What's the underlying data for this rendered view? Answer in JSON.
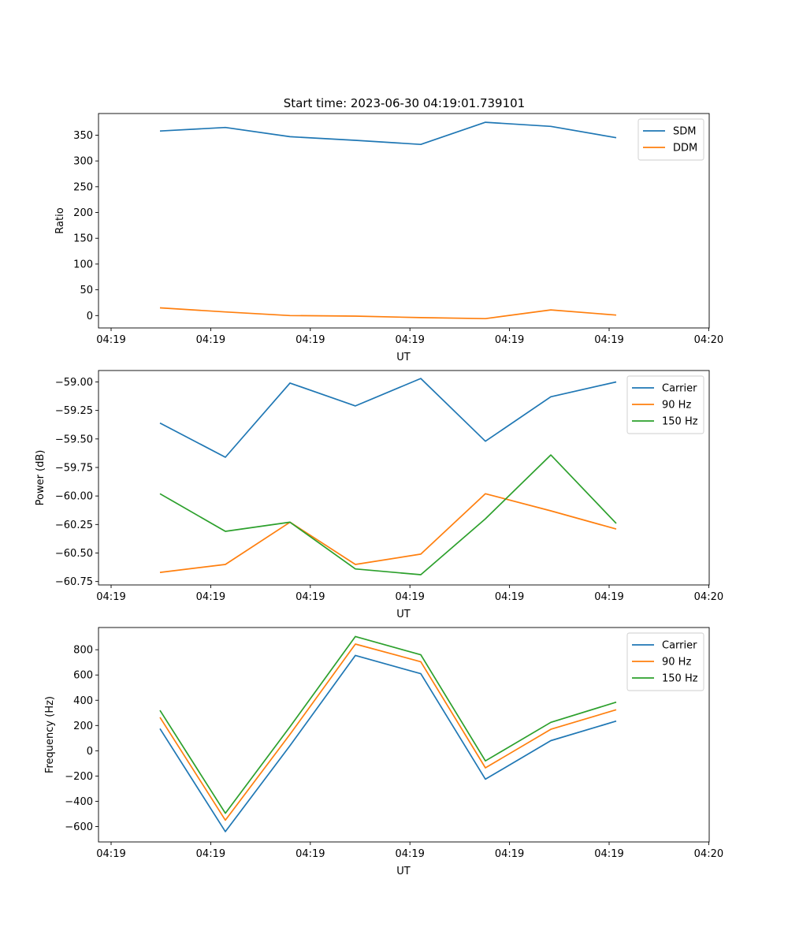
{
  "figure": {
    "title": "Start time: 2023-06-30 04:19:01.739101"
  },
  "chart_data": [
    {
      "type": "line",
      "title": "Start time: 2023-06-30 04:19:01.739101",
      "xlabel": "UT",
      "ylabel": "Ratio",
      "x_tick_labels": [
        "04:19",
        "04:19",
        "04:19",
        "04:19",
        "04:19",
        "04:19",
        "04:19",
        "04:20"
      ],
      "y_ticks": [
        0,
        50,
        100,
        150,
        200,
        250,
        300,
        350
      ],
      "y_tick_labels": [
        "0",
        "50",
        "100",
        "150",
        "200",
        "250",
        "300",
        "350"
      ],
      "ylim": [
        -24,
        392
      ],
      "grid": false,
      "legend_position": "upper right",
      "series": [
        {
          "name": "SDM",
          "color": "#1f77b4",
          "values": [
            358,
            365,
            347,
            340,
            332,
            375,
            367,
            345
          ]
        },
        {
          "name": "DDM",
          "color": "#ff7f0e",
          "values": [
            15,
            7,
            0,
            -1,
            -4,
            -6,
            11,
            1
          ]
        }
      ]
    },
    {
      "type": "line",
      "xlabel": "UT",
      "ylabel": "Power (dB)",
      "x_tick_labels": [
        "04:19",
        "04:19",
        "04:19",
        "04:19",
        "04:19",
        "04:19",
        "04:19",
        "04:20"
      ],
      "y_ticks": [
        -60.75,
        -60.5,
        -60.25,
        -60.0,
        -59.75,
        -59.5,
        -59.25,
        -59.0
      ],
      "y_tick_labels": [
        "−60.75",
        "−60.50",
        "−60.25",
        "−60.00",
        "−59.75",
        "−59.50",
        "−59.25",
        "−59.00"
      ],
      "ylim": [
        -60.78,
        -58.9
      ],
      "grid": false,
      "legend_position": "upper right",
      "series": [
        {
          "name": "Carrier",
          "color": "#1f77b4",
          "values": [
            -59.36,
            -59.66,
            -59.01,
            -59.21,
            -58.97,
            -59.52,
            -59.13,
            -59.0
          ]
        },
        {
          "name": "90 Hz",
          "color": "#ff7f0e",
          "values": [
            -60.67,
            -60.6,
            -60.23,
            -60.6,
            -60.51,
            -59.98,
            -60.13,
            -60.29
          ]
        },
        {
          "name": "150 Hz",
          "color": "#2ca02c",
          "values": [
            -59.98,
            -60.31,
            -60.23,
            -60.64,
            -60.69,
            -60.2,
            -59.64,
            -60.24
          ]
        }
      ]
    },
    {
      "type": "line",
      "xlabel": "UT",
      "ylabel": "Frequency (Hz)",
      "x_tick_labels": [
        "04:19",
        "04:19",
        "04:19",
        "04:19",
        "04:19",
        "04:19",
        "04:19",
        "04:20"
      ],
      "y_ticks": [
        -600,
        -400,
        -200,
        0,
        200,
        400,
        600,
        800
      ],
      "y_tick_labels": [
        "−600",
        "−400",
        "−200",
        "0",
        "200",
        "400",
        "600",
        "800"
      ],
      "ylim": [
        -722,
        976
      ],
      "grid": false,
      "legend_position": "upper right",
      "series": [
        {
          "name": "Carrier",
          "color": "#1f77b4",
          "values": [
            175,
            -640,
            40,
            755,
            610,
            -225,
            80,
            235
          ]
        },
        {
          "name": "90 Hz",
          "color": "#ff7f0e",
          "values": [
            265,
            -550,
            130,
            845,
            705,
            -135,
            170,
            325
          ]
        },
        {
          "name": "150 Hz",
          "color": "#2ca02c",
          "values": [
            320,
            -495,
            190,
            905,
            760,
            -80,
            225,
            385
          ]
        }
      ]
    }
  ]
}
